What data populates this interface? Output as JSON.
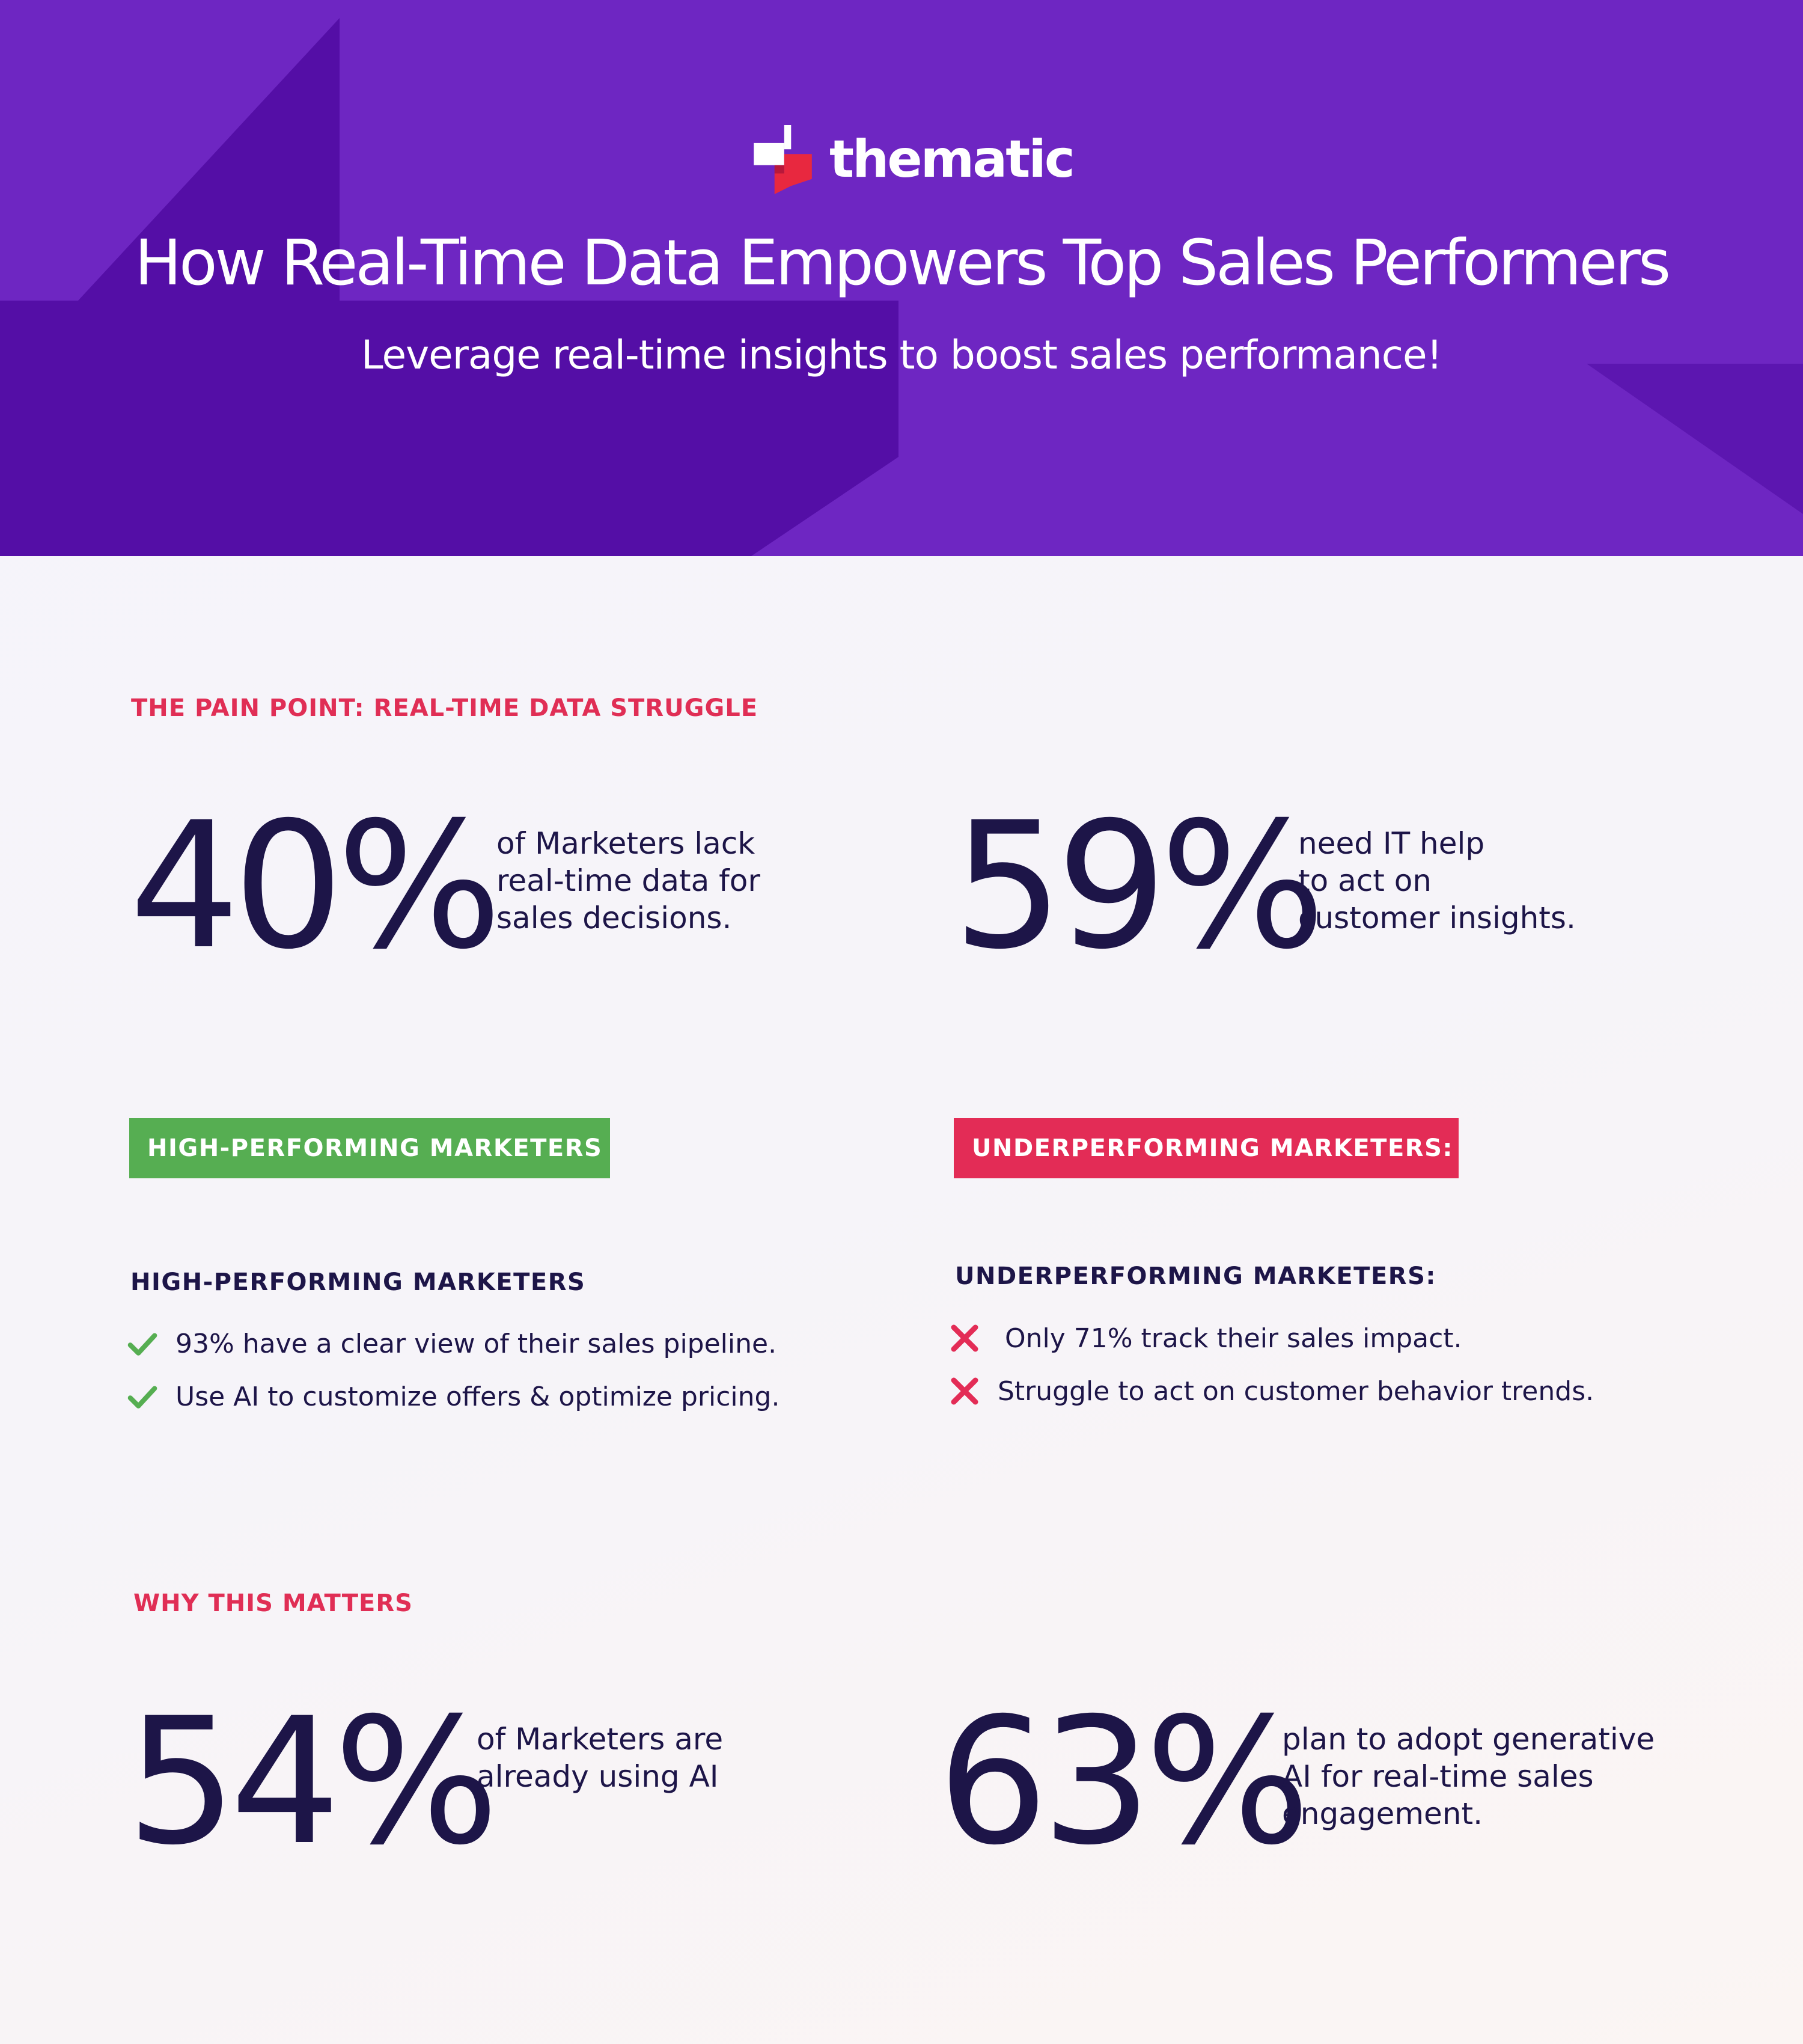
{
  "hero": {
    "logo_text": "thematic",
    "title": "How Real-Time Data Empowers Top Sales Performers",
    "subtitle": "Leverage real-time insights to boost sales performance!",
    "colors": {
      "background": "#6e26c2",
      "dark_shape": "#540ea6",
      "logo_red": "#e8283f"
    }
  },
  "pain_point": {
    "label": "THE PAIN POINT: REAL-TIME DATA STRUGGLE",
    "stats": [
      {
        "value": "40%",
        "lines": [
          "of Marketers lack",
          "real-time data for",
          "sales decisions."
        ]
      },
      {
        "value": "59%",
        "lines": [
          "need IT help",
          "to act on",
          "customer insights."
        ]
      }
    ]
  },
  "high_performing": {
    "badge": "HIGH-PERFORMING MARKETERS",
    "heading": "HIGH-PERFORMING MARKETERS",
    "icon": "check-icon",
    "color": "#56ae52",
    "items": [
      "93% have a clear view of their sales pipeline.",
      "Use AI to customize offers & optimize pricing."
    ]
  },
  "underperforming": {
    "badge": "UNDERPERFORMING MARKETERS:",
    "heading": "UNDERPERFORMING MARKETERS:",
    "icon": "x-icon",
    "color": "#e32c56",
    "items": [
      "Only 71% track their sales impact.",
      "Struggle to act on customer behavior trends."
    ]
  },
  "why_matters": {
    "label": "WHY THIS MATTERS",
    "stats": [
      {
        "value": "54%",
        "lines": [
          "of Marketers are",
          "already using AI"
        ]
      },
      {
        "value": "63%",
        "lines": [
          "plan to adopt generative",
          "AI for real-time sales",
          "engagement."
        ]
      }
    ]
  }
}
